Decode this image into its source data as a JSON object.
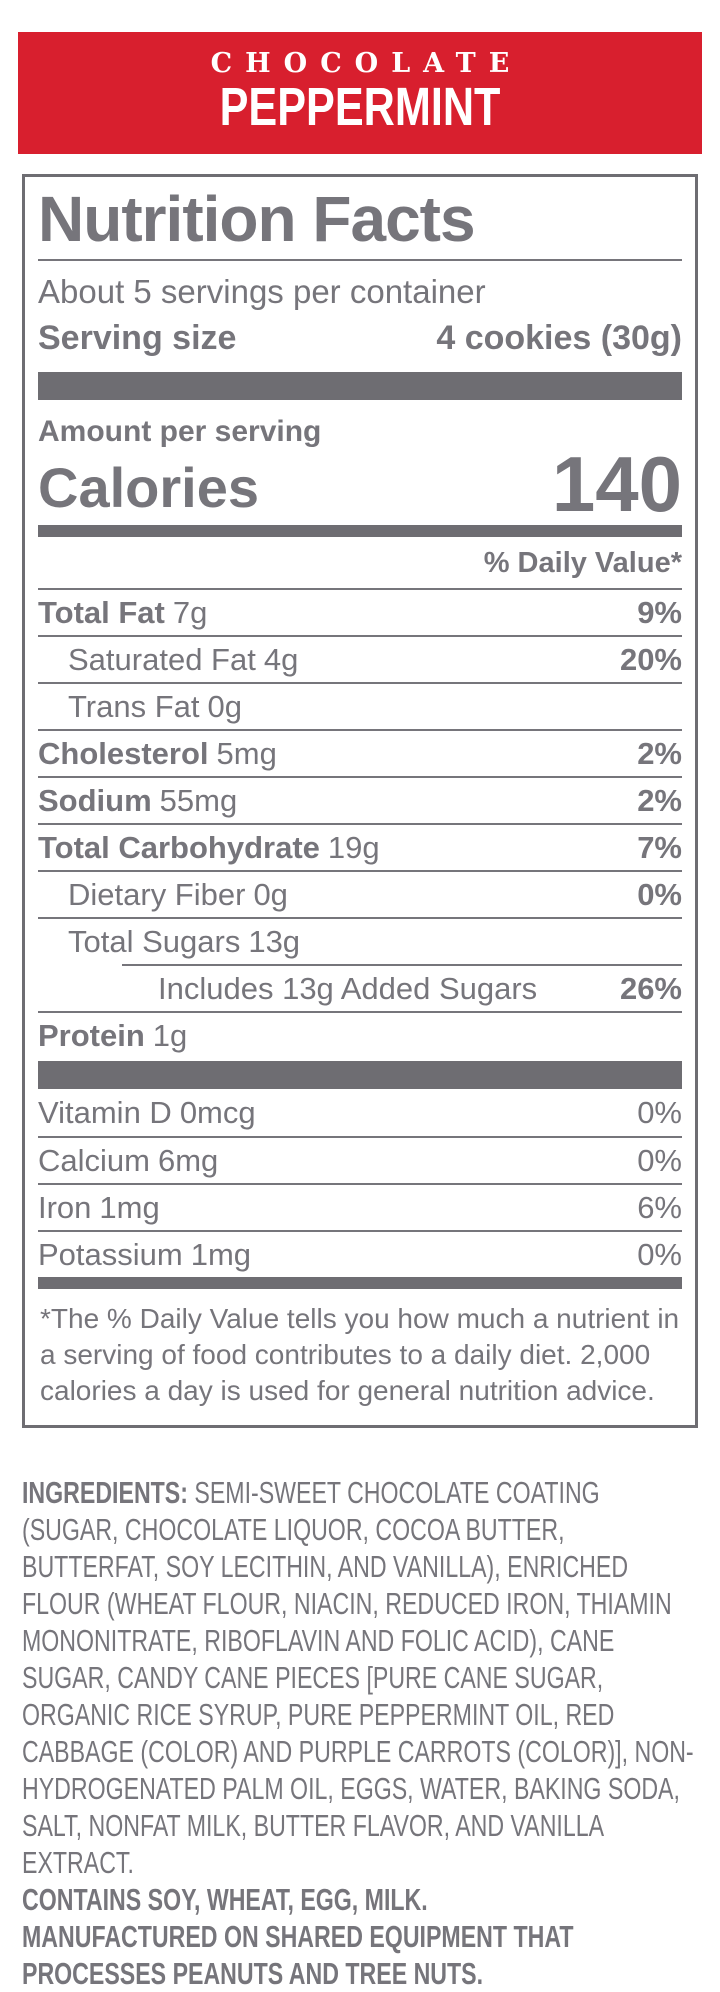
{
  "banner": {
    "line1": "CHOCOLATE",
    "line2": "PEPPERMINT",
    "bg_color": "#d81f2e",
    "text_color": "#ffffff"
  },
  "nf": {
    "title": "Nutrition Facts",
    "servings_per_container": "About 5 servings per container",
    "serving_size_label": "Serving size",
    "serving_size_value": "4 cookies (30g)",
    "amount_per_serving": "Amount per serving",
    "calories_label": "Calories",
    "calories_value": "140",
    "daily_value_header": "% Daily Value*",
    "text_color": "#76757b",
    "rows": [
      {
        "name": "Total Fat",
        "amount": "7g",
        "dv": "9%"
      },
      {
        "name": "Saturated Fat",
        "amount": "4g",
        "dv": "20%"
      },
      {
        "name": "Trans Fat",
        "amount": "0g",
        "dv": ""
      },
      {
        "name": "Cholesterol",
        "amount": "5mg",
        "dv": "2%"
      },
      {
        "name": "Sodium",
        "amount": "55mg",
        "dv": "2%"
      },
      {
        "name": "Total Carbohydrate",
        "amount": "19g",
        "dv": "7%"
      },
      {
        "name": "Dietary Fiber",
        "amount": "0g",
        "dv": "0%"
      },
      {
        "name": "Total Sugars",
        "amount": "13g",
        "dv": ""
      },
      {
        "name": "Includes 13g Added Sugars",
        "amount": "",
        "dv": "26%"
      },
      {
        "name": "Protein",
        "amount": "1g",
        "dv": ""
      }
    ],
    "vitamins": [
      {
        "name": "Vitamin D",
        "amount": "0mcg",
        "dv": "0%"
      },
      {
        "name": "Calcium",
        "amount": "6mg",
        "dv": "0%"
      },
      {
        "name": "Iron",
        "amount": "1mg",
        "dv": "6%"
      },
      {
        "name": "Potassium",
        "amount": "1mg",
        "dv": "0%"
      }
    ],
    "footnote": "*The % Daily Value tells you how much a nutrient in a serving of food contributes to a daily diet. 2,000 calories a day is used for general nutrition advice."
  },
  "ingredients": {
    "label": "INGREDIENTS:",
    "text": " SEMI-SWEET CHOCOLATE COATING (SUGAR, CHOCOLATE LIQUOR, COCOA BUTTER, BUTTERFAT, SOY LECITHIN, AND VANILLA), ENRICHED FLOUR (WHEAT FLOUR, NIACIN, REDUCED IRON, THIAMIN MONONITRATE, RIBOFLAVIN AND FOLIC ACID), CANE SUGAR, CANDY CANE PIECES [PURE CANE SUGAR, ORGANIC RICE SYRUP, PURE PEPPERMINT OIL, RED CABBAGE (COLOR) AND PURPLE CARROTS (COLOR)], NON-HYDROGENATED PALM OIL, EGGS, WATER, BAKING SODA, SALT, NONFAT MILK, BUTTER FLAVOR, AND VANILLA EXTRACT.",
    "contains": "CONTAINS SOY, WHEAT, EGG, MILK.",
    "manufactured": "MANUFACTURED ON SHARED EQUIPMENT THAT PROCESSES PEANUTS AND TREE NUTS."
  }
}
